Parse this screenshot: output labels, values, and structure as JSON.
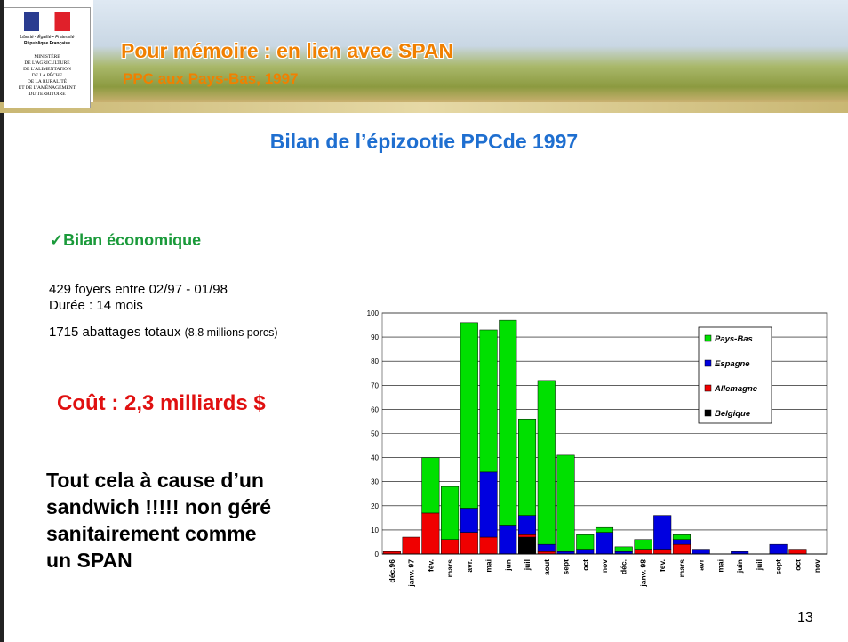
{
  "header": {
    "logo": {
      "motto": "Liberté • Égalité • Fraternité",
      "republic": "République Française",
      "ministry": [
        "MINISTÈRE",
        "DE L'AGRICULTURE",
        "DE L'ALIMENTATION",
        "DE LA PÊCHE",
        "DE LA RURALITÉ",
        "ET DE L'AMÉNAGEMENT",
        "DU TERRITOIRE"
      ]
    },
    "title": "Pour mémoire : en lien avec SPAN",
    "subtitle": "PPC aux Pays-Bas, 1997"
  },
  "slide": {
    "title": "Bilan de l’épizootie PPCde 1997",
    "section": "✓Bilan économique",
    "facts": [
      "429 foyers entre 02/97 - 01/98",
      "Durée : 14 mois"
    ],
    "slaughter": {
      "main": "1715 abattages totaux",
      "note": "(8,8 millions porcs)"
    },
    "cost": "Coût : 2,3 milliards $",
    "conclusion": [
      "Tout cela à cause d’un",
      "sandwich !!!!! non géré",
      "sanitairement comme",
      "un SPAN"
    ],
    "page_number": "13"
  },
  "chart_data": {
    "type": "stacked_bar",
    "categories": [
      "déc.96",
      "janv. 97",
      "fév.",
      "mars",
      "avr.",
      "mai",
      "jun",
      "juil",
      "aout",
      "sept",
      "oct",
      "nov",
      "déc.",
      "janv. 98",
      "fév.",
      "mars",
      "avr",
      "mai",
      "juin",
      "juil",
      "sept",
      "oct",
      "nov"
    ],
    "series": [
      {
        "name": "Pays-Bas",
        "color": "#00e000",
        "values": [
          0,
          0,
          23,
          22,
          77,
          59,
          85,
          40,
          68,
          40,
          6,
          2,
          2,
          4,
          0,
          2,
          0,
          0,
          0,
          0,
          0,
          0,
          0
        ]
      },
      {
        "name": "Espagne",
        "color": "#0000e0",
        "values": [
          0,
          0,
          0,
          0,
          10,
          27,
          12,
          8,
          3,
          1,
          2,
          9,
          1,
          0,
          14,
          2,
          2,
          0,
          1,
          0,
          4,
          0,
          0
        ]
      },
      {
        "name": "Allemagne",
        "color": "#f00000",
        "values": [
          1,
          7,
          17,
          6,
          9,
          7,
          0,
          1,
          1,
          0,
          0,
          0,
          0,
          2,
          2,
          4,
          0,
          0,
          0,
          0,
          0,
          2,
          0
        ]
      },
      {
        "name": "Belgique",
        "color": "#000000",
        "values": [
          0,
          0,
          0,
          0,
          0,
          0,
          0,
          7,
          0,
          0,
          0,
          0,
          0,
          0,
          0,
          0,
          0,
          0,
          0,
          0,
          0,
          0,
          0
        ]
      }
    ],
    "ylim": [
      0,
      100
    ],
    "yticks": [
      0,
      10,
      20,
      30,
      40,
      50,
      60,
      70,
      80,
      90,
      100
    ],
    "grid": true,
    "legend": "right"
  }
}
